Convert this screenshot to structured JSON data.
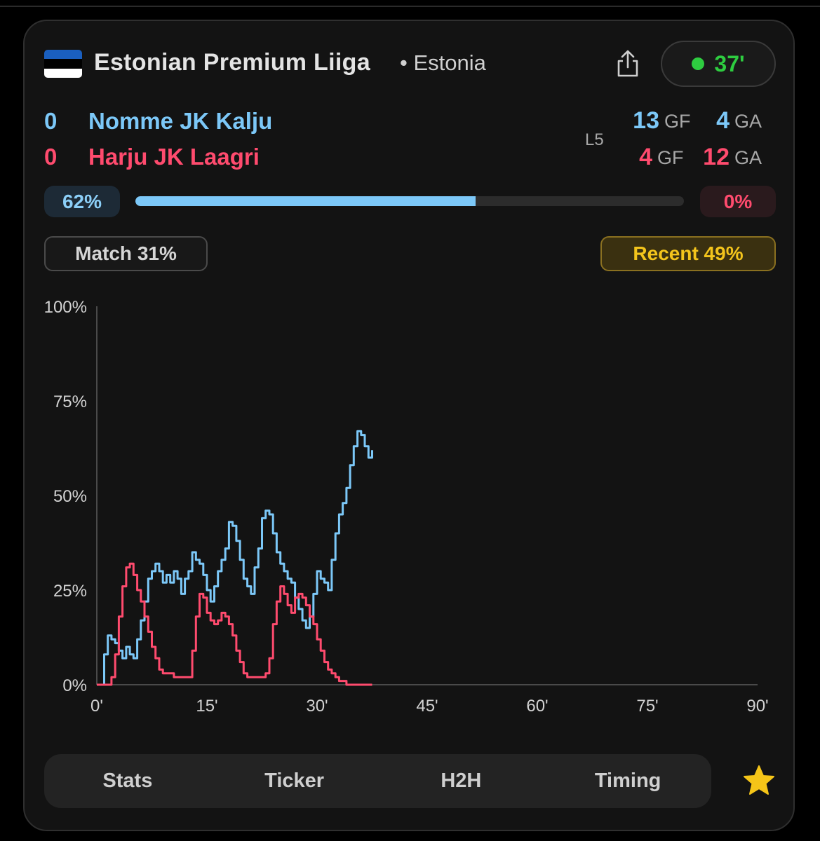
{
  "header": {
    "league": "Estonian Premium Liiga",
    "country": "• Estonia",
    "live_minute": "37'",
    "flag_colors": [
      "#1a5fbf",
      "#000000",
      "#ffffff"
    ]
  },
  "teams": {
    "home": {
      "score": "0",
      "name": "Nomme JK Kalju",
      "gf": "13",
      "ga": "4",
      "gf_label": "GF",
      "ga_label": "GA"
    },
    "away": {
      "score": "0",
      "name": "Harju JK Laagri",
      "gf": "4",
      "ga": "12",
      "gf_label": "GF",
      "ga_label": "GA"
    },
    "form_label": "L5"
  },
  "probability": {
    "home_pct": "62%",
    "away_pct": "0%",
    "home_fraction": 0.62
  },
  "buttons": {
    "match": "Match 31%",
    "recent": "Recent 49%"
  },
  "chart_data": {
    "type": "line",
    "x_unit": "minute",
    "xlim": [
      0,
      90
    ],
    "ylim": [
      0,
      100
    ],
    "x_ticks": [
      "0'",
      "15'",
      "30'",
      "45'",
      "60'",
      "75'",
      "90'"
    ],
    "y_ticks": [
      "0%",
      "25%",
      "50%",
      "75%",
      "100%"
    ],
    "series": [
      {
        "color": "#7cc8f8",
        "x": [
          0,
          1,
          1.5,
          2,
          2.5,
          3,
          3.5,
          4,
          4.5,
          5,
          5.5,
          6,
          6.5,
          7,
          7.5,
          8,
          8.5,
          9,
          9.5,
          10,
          10.5,
          11,
          11.5,
          12,
          12.5,
          13,
          13.5,
          14,
          14.5,
          15,
          15.5,
          16,
          16.5,
          17,
          17.5,
          18,
          18.5,
          19,
          19.5,
          20,
          20.5,
          21,
          21.5,
          22,
          22.5,
          23,
          23.5,
          24,
          24.5,
          25,
          25.5,
          26,
          26.5,
          27,
          27.5,
          28,
          28.5,
          29,
          29.5,
          30,
          30.5,
          31,
          31.5,
          32,
          32.5,
          33,
          33.5,
          34,
          34.5,
          35,
          35.5,
          36,
          36.5,
          37,
          37.5
        ],
        "values": [
          0,
          8,
          13,
          12,
          11,
          9,
          7,
          10,
          8,
          7,
          12,
          17,
          22,
          28,
          30,
          32,
          30,
          27,
          29,
          27,
          30,
          28,
          24,
          28,
          30,
          35,
          33,
          32,
          29,
          25,
          22,
          26,
          30,
          33,
          36,
          43,
          42,
          38,
          33,
          28,
          26,
          24,
          31,
          36,
          44,
          46,
          45,
          40,
          35,
          32,
          30,
          28,
          27,
          23,
          20,
          17,
          15,
          18,
          24,
          30,
          28,
          27,
          25,
          33,
          40,
          45,
          48,
          52,
          58,
          63,
          67,
          66,
          63,
          60,
          62
        ]
      },
      {
        "color": "#ff4b6e",
        "x": [
          0,
          1,
          1.5,
          2,
          2.5,
          3,
          3.5,
          4,
          4.5,
          5,
          5.5,
          6,
          6.5,
          7,
          7.5,
          8,
          8.5,
          9,
          9.5,
          10,
          10.5,
          11,
          11.5,
          12,
          12.5,
          13,
          13.5,
          14,
          14.5,
          15,
          15.5,
          16,
          16.5,
          17,
          17.5,
          18,
          18.5,
          19,
          19.5,
          20,
          20.5,
          21,
          21.5,
          22,
          22.5,
          23,
          23.5,
          24,
          24.5,
          25,
          25.5,
          26,
          26.5,
          27,
          27.5,
          28,
          28.5,
          29,
          29.5,
          30,
          30.5,
          31,
          31.5,
          32,
          32.5,
          33,
          33.5,
          34,
          34.5,
          35,
          35.5,
          36,
          36.5,
          37,
          37.5
        ],
        "values": [
          0,
          0,
          0,
          2,
          8,
          18,
          26,
          31,
          32,
          29,
          25,
          22,
          18,
          14,
          10,
          7,
          4,
          3,
          3,
          3,
          2,
          2,
          2,
          2,
          2,
          9,
          18,
          24,
          23,
          19,
          17,
          16,
          17,
          19,
          18,
          16,
          13,
          9,
          6,
          3,
          2,
          2,
          2,
          2,
          2,
          3,
          7,
          16,
          22,
          26,
          24,
          21,
          19,
          23,
          24,
          23,
          21,
          18,
          16,
          12,
          9,
          6,
          4,
          3,
          2,
          1,
          1,
          0,
          0,
          0,
          0,
          0,
          0,
          0,
          0
        ]
      }
    ]
  },
  "tabs": [
    "Stats",
    "Ticker",
    "H2H",
    "Timing"
  ]
}
